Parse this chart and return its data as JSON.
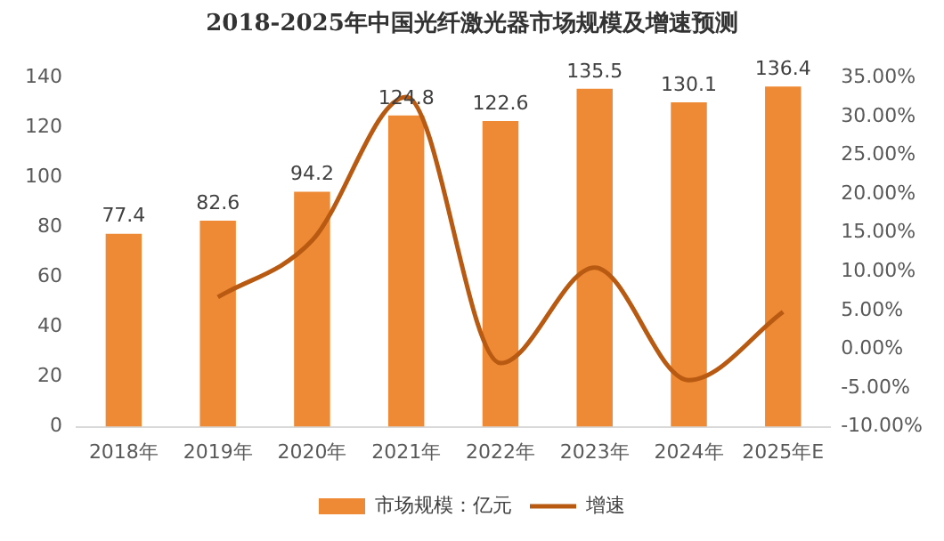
{
  "chart_data": {
    "type": "bar",
    "title": "2018-2025年中国光纤激光器市场规模及增速预测",
    "categories": [
      "2018年",
      "2019年",
      "2020年",
      "2021年",
      "2022年",
      "2023年",
      "2024年",
      "2025年E"
    ],
    "series": [
      {
        "name": "市场规模：亿元",
        "color": "#ee8a35",
        "values": [
          77.4,
          82.6,
          94.2,
          124.8,
          122.6,
          135.5,
          130.1,
          136.4
        ],
        "value_labels": [
          "77.4",
          "82.6",
          "94.2",
          "124.8",
          "122.6",
          "135.5",
          "130.1",
          "136.4"
        ]
      },
      {
        "name": "增速",
        "type": "line",
        "axis": "y2",
        "color": "#b85a12",
        "values": [
          null,
          6.7,
          14.0,
          32.5,
          -1.8,
          10.5,
          -4.0,
          4.8
        ]
      }
    ],
    "ylim": [
      0,
      140
    ],
    "yticks": [
      0,
      20,
      40,
      60,
      80,
      100,
      120,
      140
    ],
    "y2lim": [
      -10,
      35
    ],
    "y2ticks": [
      {
        "value": -10,
        "label": "-10.00%"
      },
      {
        "value": -5,
        "label": "-5.00%"
      },
      {
        "value": 0,
        "label": "0.00%"
      },
      {
        "value": 5,
        "label": "5.00%"
      },
      {
        "value": 10,
        "label": "10.00%"
      },
      {
        "value": 15,
        "label": "15.00%"
      },
      {
        "value": 20,
        "label": "20.00%"
      },
      {
        "value": 25,
        "label": "25.00%"
      },
      {
        "value": 30,
        "label": "30.00%"
      },
      {
        "value": 35,
        "label": "35.00%"
      }
    ],
    "legend": "bottom",
    "marker": "none",
    "grid": false
  }
}
